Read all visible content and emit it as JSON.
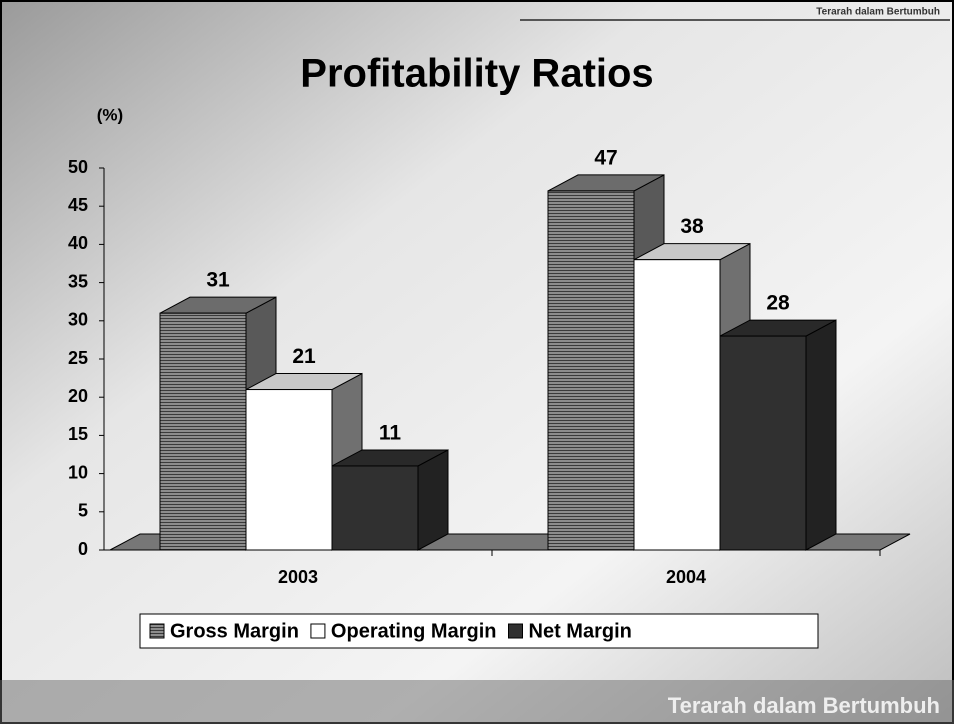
{
  "slide": {
    "header_tagline": "Terarah dalam Bertumbuh",
    "footer_tagline": "Terarah dalam Bertumbuh"
  },
  "chart_data": {
    "type": "bar3d",
    "title": "Profitability Ratios",
    "y_label": "(%)",
    "categories": [
      "2003",
      "2004"
    ],
    "series": [
      {
        "name": "Gross Margin",
        "color": "#7f7f7f",
        "values": [
          31,
          47
        ]
      },
      {
        "name": "Operating Margin",
        "color": "#ffffff",
        "values": [
          21,
          38
        ]
      },
      {
        "name": "Net Margin",
        "color": "#303030",
        "values": [
          11,
          28
        ]
      }
    ],
    "ylim": [
      0,
      50
    ],
    "yticks": [
      0,
      5,
      10,
      15,
      20,
      25,
      30,
      35,
      40,
      45,
      50
    ],
    "legend": "bottom"
  }
}
